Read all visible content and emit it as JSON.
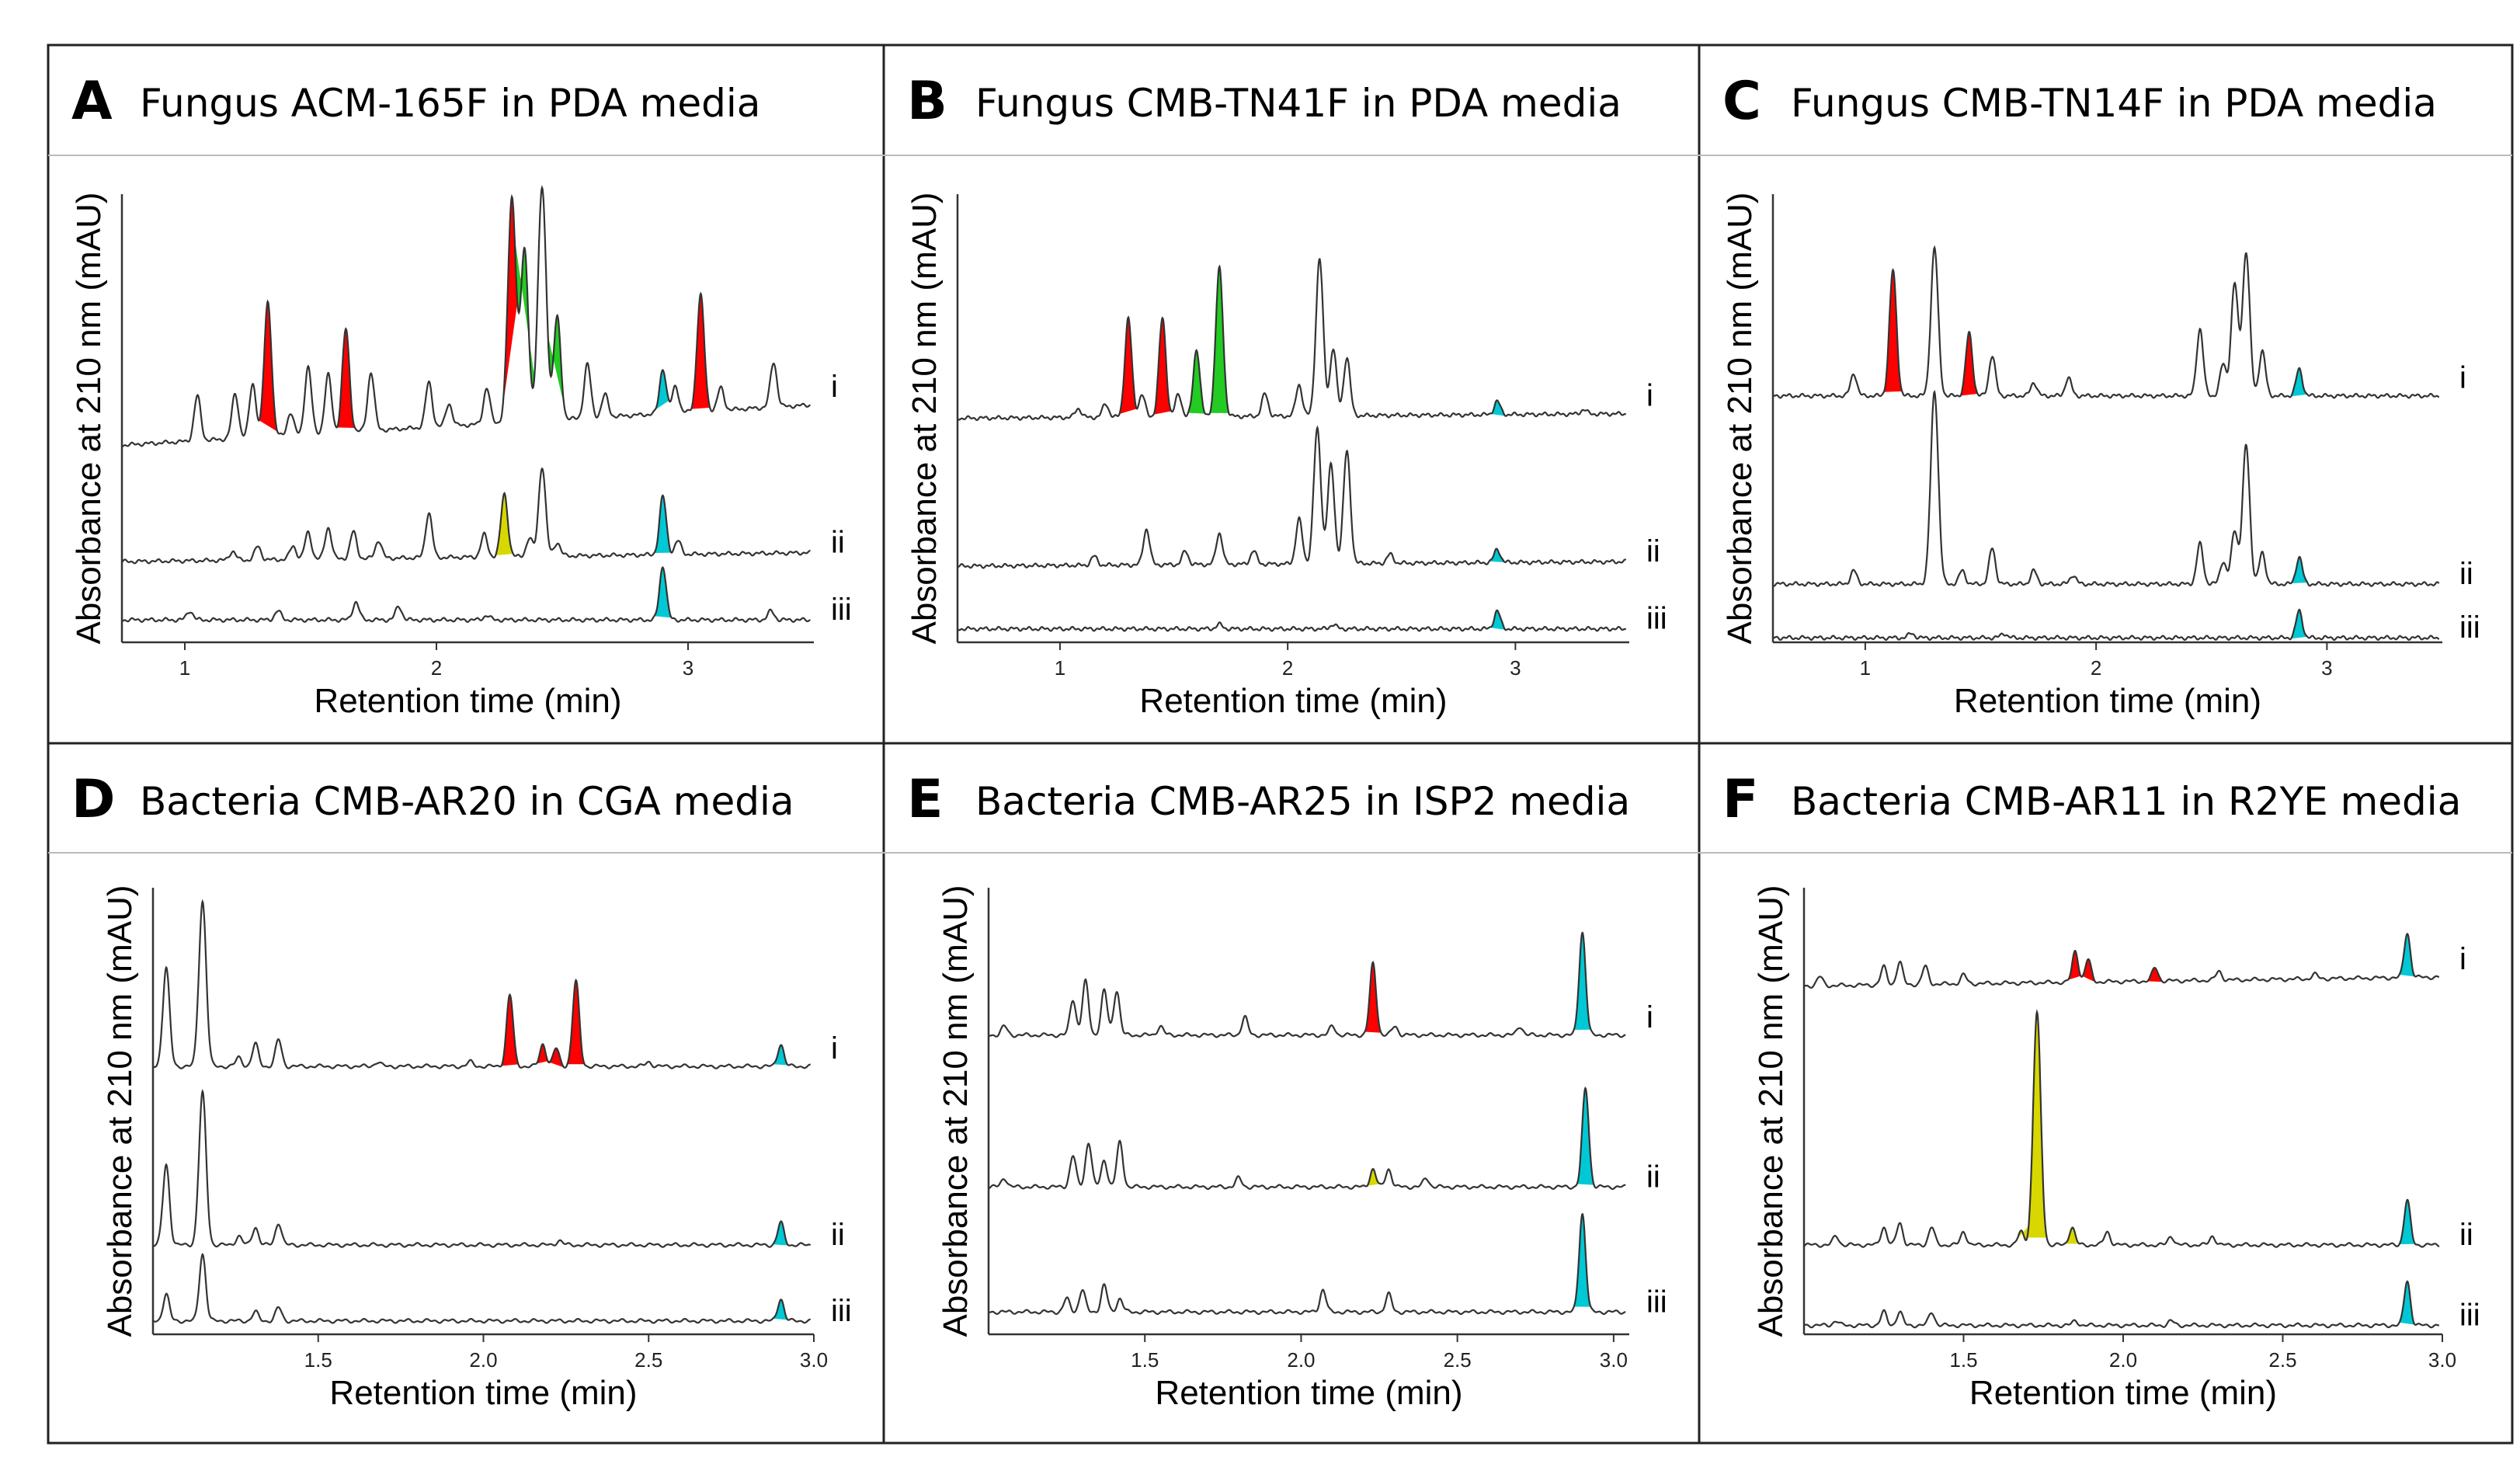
{
  "colors": {
    "red": "#ff0000",
    "green": "#22cc22",
    "cyan": "#00c8d4",
    "yellow": "#d8d800",
    "trace": "#333333"
  },
  "chart_data": [
    {
      "type": "line",
      "panel": "A",
      "title": "Fungus ACM-165F in PDA media",
      "xlabel": "Retention time (min)",
      "ylabel": "Absorbance at 210 nm (mAU)",
      "xlim": [
        0.75,
        3.5
      ],
      "ticks": [
        "1",
        "2",
        "3"
      ],
      "tick_values": [
        1,
        2,
        3
      ],
      "grid": false,
      "series": [
        {
          "name": "i",
          "peaks": [
            [
              1.05,
              0.1
            ],
            [
              1.2,
              0.1
            ],
            [
              1.27,
              0.12
            ],
            [
              1.33,
              0.3,
              "red"
            ],
            [
              1.42,
              0.05
            ],
            [
              1.49,
              0.15
            ],
            [
              1.57,
              0.13
            ],
            [
              1.64,
              0.23,
              "red"
            ],
            [
              1.74,
              0.13
            ],
            [
              1.97,
              0.1
            ],
            [
              2.05,
              0.05
            ],
            [
              2.2,
              0.08
            ],
            [
              2.3,
              0.5,
              "red"
            ],
            [
              2.35,
              0.38,
              "green"
            ],
            [
              2.42,
              0.52
            ],
            [
              2.48,
              0.23,
              "green"
            ],
            [
              2.6,
              0.12
            ],
            [
              2.67,
              0.05
            ],
            [
              2.9,
              0.1,
              "cyan"
            ],
            [
              2.95,
              0.06
            ],
            [
              3.05,
              0.26,
              "red"
            ],
            [
              3.13,
              0.05
            ],
            [
              3.34,
              0.1
            ]
          ]
        },
        {
          "name": "ii",
          "peaks": [
            [
              1.19,
              0.02
            ],
            [
              1.29,
              0.03
            ],
            [
              1.43,
              0.03
            ],
            [
              1.49,
              0.06
            ],
            [
              1.57,
              0.07
            ],
            [
              1.67,
              0.06
            ],
            [
              1.77,
              0.04
            ],
            [
              1.97,
              0.1
            ],
            [
              2.19,
              0.05
            ],
            [
              2.27,
              0.14,
              "yellow"
            ],
            [
              2.37,
              0.04
            ],
            [
              2.42,
              0.2
            ],
            [
              2.48,
              0.03
            ],
            [
              2.9,
              0.13,
              "cyan"
            ],
            [
              2.96,
              0.03
            ]
          ]
        },
        {
          "name": "iii",
          "peaks": [
            [
              1.02,
              0.02
            ],
            [
              1.37,
              0.02
            ],
            [
              1.68,
              0.04
            ],
            [
              1.85,
              0.03
            ],
            [
              2.2,
              0.01
            ],
            [
              2.9,
              0.12,
              "cyan"
            ],
            [
              3.33,
              0.02
            ]
          ]
        }
      ]
    },
    {
      "type": "line",
      "panel": "B",
      "title": "Fungus CMB-TN41F in PDA media",
      "xlabel": "Retention time (min)",
      "ylabel": "Absorbance at 210 nm (mAU)",
      "xlim": [
        0.55,
        3.5
      ],
      "ticks": [
        "1",
        "2",
        "3"
      ],
      "tick_values": [
        1,
        2,
        3
      ],
      "grid": false,
      "series": [
        {
          "name": "i",
          "peaks": [
            [
              1.08,
              0.02
            ],
            [
              1.2,
              0.03
            ],
            [
              1.3,
              0.22,
              "red"
            ],
            [
              1.36,
              0.05
            ],
            [
              1.45,
              0.22,
              "red"
            ],
            [
              1.52,
              0.05
            ],
            [
              1.6,
              0.15,
              "green"
            ],
            [
              1.7,
              0.33,
              "green"
            ],
            [
              1.9,
              0.05
            ],
            [
              2.05,
              0.07
            ],
            [
              2.14,
              0.35
            ],
            [
              2.2,
              0.15
            ],
            [
              2.26,
              0.13
            ],
            [
              2.92,
              0.03,
              "cyan"
            ],
            [
              3.3,
              0.01
            ]
          ]
        },
        {
          "name": "ii",
          "peaks": [
            [
              1.15,
              0.02
            ],
            [
              1.38,
              0.08
            ],
            [
              1.55,
              0.03
            ],
            [
              1.7,
              0.07
            ],
            [
              1.85,
              0.03
            ],
            [
              2.05,
              0.1
            ],
            [
              2.13,
              0.3
            ],
            [
              2.19,
              0.22
            ],
            [
              2.26,
              0.25
            ],
            [
              2.45,
              0.02
            ],
            [
              2.92,
              0.03,
              "cyan"
            ]
          ]
        },
        {
          "name": "iii",
          "peaks": [
            [
              1.7,
              0.01
            ],
            [
              2.2,
              0.01
            ],
            [
              2.92,
              0.04,
              "cyan"
            ]
          ]
        }
      ]
    },
    {
      "type": "line",
      "panel": "C",
      "title": "Fungus CMB-TN14F in PDA media",
      "xlabel": "Retention time (min)",
      "ylabel": "Absorbance at 210 nm (mAU)",
      "xlim": [
        0.6,
        3.5
      ],
      "ticks": [
        "1",
        "2",
        "3"
      ],
      "tick_values": [
        1,
        2,
        3
      ],
      "grid": false,
      "series": [
        {
          "name": "i",
          "peaks": [
            [
              0.95,
              0.05
            ],
            [
              1.12,
              0.28,
              "red"
            ],
            [
              1.3,
              0.33
            ],
            [
              1.45,
              0.14,
              "red"
            ],
            [
              1.55,
              0.09
            ],
            [
              1.73,
              0.03
            ],
            [
              1.88,
              0.04
            ],
            [
              2.45,
              0.15
            ],
            [
              2.55,
              0.07
            ],
            [
              2.6,
              0.25
            ],
            [
              2.65,
              0.32
            ],
            [
              2.72,
              0.1
            ],
            [
              2.88,
              0.06,
              "cyan"
            ]
          ]
        },
        {
          "name": "ii",
          "peaks": [
            [
              0.95,
              0.03
            ],
            [
              1.3,
              0.43
            ],
            [
              1.42,
              0.03
            ],
            [
              1.55,
              0.08
            ],
            [
              1.73,
              0.03
            ],
            [
              1.9,
              0.02
            ],
            [
              2.45,
              0.09
            ],
            [
              2.55,
              0.05
            ],
            [
              2.6,
              0.12
            ],
            [
              2.65,
              0.31
            ],
            [
              2.72,
              0.07
            ],
            [
              2.88,
              0.06,
              "cyan"
            ]
          ]
        },
        {
          "name": "iii",
          "peaks": [
            [
              1.2,
              0.01
            ],
            [
              1.6,
              0.01
            ],
            [
              2.88,
              0.06,
              "cyan"
            ]
          ]
        }
      ]
    },
    {
      "type": "line",
      "panel": "D",
      "title": "Bacteria CMB-AR20 in CGA media",
      "xlabel": "Retention time (min)",
      "ylabel": "Absorbance at 210 nm (mAU)",
      "xlim": [
        1.0,
        3.0
      ],
      "ticks": [
        "1.5",
        "2.0",
        "2.5",
        "3.0"
      ],
      "tick_values": [
        1.5,
        2.0,
        2.5,
        3.0
      ],
      "grid": false,
      "series": [
        {
          "name": "i",
          "peaks": [
            [
              1.04,
              0.22
            ],
            [
              1.15,
              0.37
            ],
            [
              1.26,
              0.02
            ],
            [
              1.31,
              0.05
            ],
            [
              1.38,
              0.06
            ],
            [
              1.68,
              0.01
            ],
            [
              1.96,
              0.01
            ],
            [
              2.08,
              0.16,
              "red"
            ],
            [
              2.18,
              0.05,
              "red"
            ],
            [
              2.22,
              0.04,
              "red"
            ],
            [
              2.28,
              0.19,
              "red"
            ],
            [
              2.5,
              0.01
            ],
            [
              2.9,
              0.05,
              "cyan"
            ]
          ]
        },
        {
          "name": "ii",
          "peaks": [
            [
              1.04,
              0.18
            ],
            [
              1.15,
              0.34
            ],
            [
              1.26,
              0.02
            ],
            [
              1.31,
              0.04
            ],
            [
              1.38,
              0.05
            ],
            [
              2.23,
              0.01
            ],
            [
              2.9,
              0.05,
              "cyan"
            ]
          ]
        },
        {
          "name": "iii",
          "peaks": [
            [
              1.04,
              0.06
            ],
            [
              1.15,
              0.15
            ],
            [
              1.31,
              0.02
            ],
            [
              1.38,
              0.03
            ],
            [
              2.9,
              0.05,
              "cyan"
            ]
          ]
        }
      ]
    },
    {
      "type": "line",
      "panel": "E",
      "title": "Bacteria CMB-AR25 in ISP2 media",
      "xlabel": "Retention time (min)",
      "ylabel": "Absorbance at 210 nm (mAU)",
      "xlim": [
        1.0,
        3.05
      ],
      "ticks": [
        "1.5",
        "2.0",
        "2.5",
        "3.0"
      ],
      "tick_values": [
        1.5,
        2.0,
        2.5,
        3.0
      ],
      "grid": false,
      "series": [
        {
          "name": "i",
          "peaks": [
            [
              1.05,
              0.02
            ],
            [
              1.27,
              0.08
            ],
            [
              1.31,
              0.12
            ],
            [
              1.37,
              0.1
            ],
            [
              1.41,
              0.1
            ],
            [
              1.55,
              0.02
            ],
            [
              1.82,
              0.04
            ],
            [
              2.1,
              0.02
            ],
            [
              2.23,
              0.16,
              "red"
            ],
            [
              2.3,
              0.02
            ],
            [
              2.7,
              0.02
            ],
            [
              2.9,
              0.23,
              "cyan"
            ]
          ]
        },
        {
          "name": "ii",
          "peaks": [
            [
              1.05,
              0.02
            ],
            [
              1.27,
              0.07
            ],
            [
              1.32,
              0.1
            ],
            [
              1.37,
              0.06
            ],
            [
              1.42,
              0.1
            ],
            [
              1.8,
              0.02
            ],
            [
              2.23,
              0.04,
              "yellow"
            ],
            [
              2.28,
              0.04
            ],
            [
              2.4,
              0.02
            ],
            [
              2.91,
              0.22,
              "cyan"
            ]
          ]
        },
        {
          "name": "iii",
          "peaks": [
            [
              1.25,
              0.03
            ],
            [
              1.3,
              0.05
            ],
            [
              1.37,
              0.06
            ],
            [
              1.42,
              0.03
            ],
            [
              2.07,
              0.05
            ],
            [
              2.28,
              0.04
            ],
            [
              2.9,
              0.22,
              "cyan"
            ]
          ]
        }
      ]
    },
    {
      "type": "line",
      "panel": "F",
      "title": "Bacteria CMB-AR11 in R2YE media",
      "xlabel": "Retention time (min)",
      "ylabel": "Absorbance at 210 nm (mAU)",
      "xlim": [
        1.0,
        3.0
      ],
      "ticks": [
        "1.5",
        "2.0",
        "2.5",
        "3.0"
      ],
      "tick_values": [
        1.5,
        2.0,
        2.5,
        3.0
      ],
      "grid": false,
      "series": [
        {
          "name": "i",
          "peaks": [
            [
              1.05,
              0.02
            ],
            [
              1.25,
              0.04
            ],
            [
              1.3,
              0.05
            ],
            [
              1.38,
              0.04
            ],
            [
              1.5,
              0.02
            ],
            [
              1.85,
              0.07,
              "red"
            ],
            [
              1.89,
              0.05,
              "red"
            ],
            [
              2.1,
              0.03,
              "red"
            ],
            [
              2.3,
              0.02
            ],
            [
              2.6,
              0.01
            ],
            [
              2.89,
              0.1,
              "cyan"
            ]
          ]
        },
        {
          "name": "ii",
          "peaks": [
            [
              1.1,
              0.02
            ],
            [
              1.25,
              0.04
            ],
            [
              1.3,
              0.05
            ],
            [
              1.4,
              0.04
            ],
            [
              1.5,
              0.03
            ],
            [
              1.68,
              0.03,
              "yellow"
            ],
            [
              1.73,
              0.52,
              "yellow"
            ],
            [
              1.84,
              0.04,
              "yellow"
            ],
            [
              1.95,
              0.03
            ],
            [
              2.15,
              0.02
            ],
            [
              2.28,
              0.02
            ],
            [
              2.89,
              0.1,
              "cyan"
            ]
          ]
        },
        {
          "name": "iii",
          "peaks": [
            [
              1.1,
              0.01
            ],
            [
              1.25,
              0.03
            ],
            [
              1.3,
              0.03
            ],
            [
              1.4,
              0.03
            ],
            [
              1.85,
              0.01
            ],
            [
              2.15,
              0.01
            ],
            [
              2.89,
              0.1,
              "cyan"
            ]
          ]
        }
      ]
    }
  ]
}
